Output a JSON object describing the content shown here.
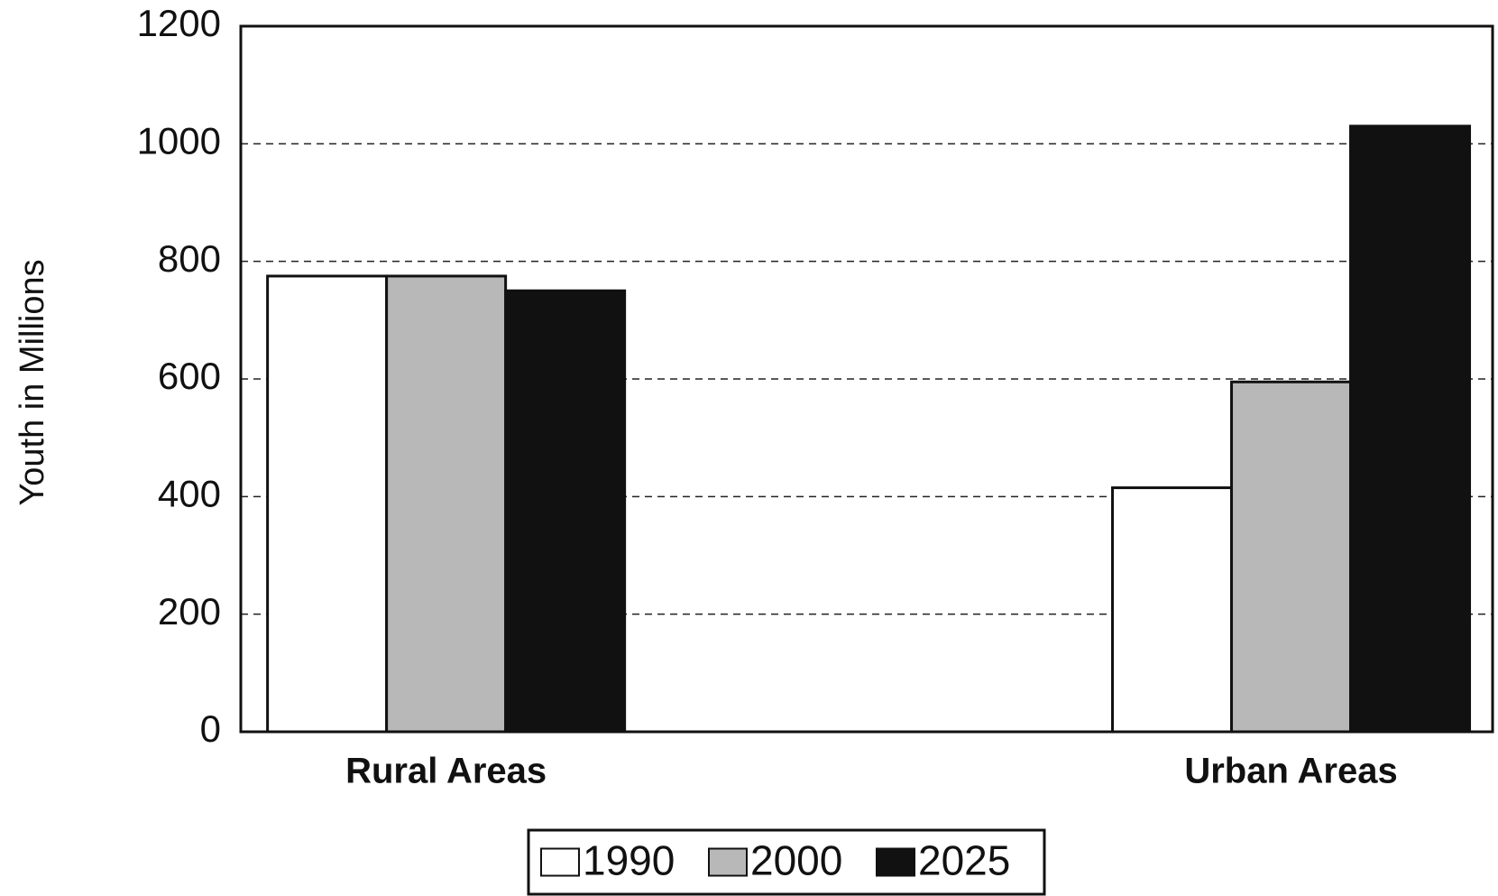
{
  "chart_data": {
    "type": "bar",
    "y_label": "Youth in Millions",
    "categories": [
      "Rural Areas",
      "Urban Areas"
    ],
    "series": [
      {
        "name": "1990",
        "color": "#ffffff",
        "values": [
          775,
          415
        ]
      },
      {
        "name": "2000",
        "color": "#b8b8b8",
        "values": [
          775,
          595
        ]
      },
      {
        "name": "2025",
        "color": "#111111",
        "values": [
          750,
          1030
        ]
      }
    ],
    "ylim": [
      0,
      1200
    ],
    "yticks": [
      0,
      200,
      400,
      600,
      800,
      1000,
      1200
    ],
    "grid": true,
    "legend": "bottom"
  }
}
